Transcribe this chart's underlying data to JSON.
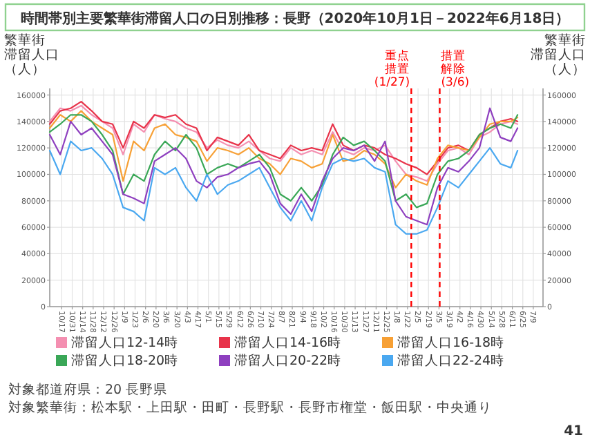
{
  "chart_data": {
    "type": "line",
    "title": "時間帯別主要繁華街滞留人口の日別推移：長野（2020年10月1日－2022年6月18日）",
    "ylabel": "繁華街滞留人口（人）",
    "y2label": "繁華街滞留人口（人）",
    "x": [
      "2020-10-01",
      "2020-10-15",
      "2020-10-29",
      "2020-11-12",
      "2020-11-26",
      "2020-12-10",
      "2020-12-24",
      "2021-01-07",
      "2021-01-21",
      "2021-02-04",
      "2021-02-18",
      "2021-03-04",
      "2021-03-18",
      "2021-04-01",
      "2021-04-15",
      "2021-04-29",
      "2021-05-13",
      "2021-05-27",
      "2021-06-10",
      "2021-06-24",
      "2021-07-08",
      "2021-07-22",
      "2021-08-05",
      "2021-08-19",
      "2021-09-02",
      "2021-09-16",
      "2021-09-30",
      "2021-10-14",
      "2021-10-28",
      "2021-11-11",
      "2021-11-25",
      "2021-12-09",
      "2021-12-23",
      "2022-01-06",
      "2022-01-20",
      "2022-02-03",
      "2022-02-17",
      "2022-03-03",
      "2022-03-17",
      "2022-03-31",
      "2022-04-14",
      "2022-04-28",
      "2022-05-12",
      "2022-05-26",
      "2022-06-09",
      "2022-06-18"
    ],
    "series": [
      {
        "name": "滞留人口12-14時",
        "color": "#f48fb1",
        "values": [
          140000,
          150000,
          148000,
          152000,
          145000,
          140000,
          135000,
          115000,
          138000,
          132000,
          145000,
          142000,
          140000,
          135000,
          132000,
          120000,
          126000,
          122000,
          120000,
          125000,
          118000,
          112000,
          110000,
          120000,
          115000,
          118000,
          115000,
          132000,
          118000,
          115000,
          120000,
          118000,
          122000,
          110000,
          100000,
          98000,
          95000,
          108000,
          118000,
          120000,
          115000,
          128000,
          132000,
          138000,
          140000,
          138000
        ]
      },
      {
        "name": "滞留人口14-16時",
        "color": "#e8334a",
        "values": [
          138000,
          148000,
          150000,
          155000,
          148000,
          140000,
          138000,
          120000,
          140000,
          135000,
          145000,
          143000,
          145000,
          138000,
          135000,
          118000,
          128000,
          125000,
          122000,
          130000,
          118000,
          115000,
          112000,
          122000,
          118000,
          120000,
          118000,
          138000,
          122000,
          118000,
          122000,
          120000,
          115000,
          112000,
          108000,
          105000,
          100000,
          110000,
          120000,
          122000,
          118000,
          130000,
          135000,
          140000,
          142000,
          140000
        ]
      },
      {
        "name": "滞留人口16-18時",
        "color": "#f7a035",
        "values": [
          135000,
          145000,
          140000,
          148000,
          140000,
          135000,
          130000,
          95000,
          125000,
          118000,
          135000,
          138000,
          130000,
          128000,
          125000,
          110000,
          120000,
          118000,
          115000,
          120000,
          112000,
          108000,
          100000,
          112000,
          110000,
          105000,
          108000,
          130000,
          110000,
          112000,
          118000,
          115000,
          108000,
          90000,
          100000,
          95000,
          92000,
          112000,
          122000,
          120000,
          118000,
          128000,
          138000,
          140000,
          140000,
          143000
        ]
      },
      {
        "name": "滞留人口18-20時",
        "color": "#3aa757",
        "values": [
          132000,
          138000,
          145000,
          145000,
          140000,
          130000,
          118000,
          85000,
          100000,
          95000,
          115000,
          125000,
          118000,
          130000,
          120000,
          100000,
          105000,
          108000,
          105000,
          110000,
          115000,
          105000,
          85000,
          80000,
          90000,
          80000,
          92000,
          115000,
          128000,
          122000,
          125000,
          118000,
          110000,
          80000,
          85000,
          75000,
          78000,
          100000,
          110000,
          112000,
          118000,
          130000,
          135000,
          138000,
          135000,
          145000
        ]
      },
      {
        "name": "滞留人口20-22時",
        "color": "#8e3fbf",
        "values": [
          130000,
          115000,
          140000,
          130000,
          135000,
          125000,
          115000,
          85000,
          82000,
          78000,
          110000,
          115000,
          120000,
          112000,
          95000,
          90000,
          98000,
          100000,
          105000,
          108000,
          110000,
          100000,
          78000,
          70000,
          85000,
          72000,
          95000,
          112000,
          120000,
          118000,
          122000,
          110000,
          125000,
          80000,
          68000,
          65000,
          62000,
          90000,
          105000,
          102000,
          110000,
          120000,
          150000,
          128000,
          125000,
          135000
        ]
      },
      {
        "name": "滞留人口22-24時",
        "color": "#4aa8f0",
        "values": [
          118000,
          100000,
          125000,
          118000,
          120000,
          112000,
          100000,
          75000,
          72000,
          65000,
          105000,
          100000,
          105000,
          90000,
          80000,
          100000,
          85000,
          92000,
          95000,
          100000,
          105000,
          90000,
          75000,
          65000,
          80000,
          65000,
          90000,
          108000,
          112000,
          110000,
          112000,
          105000,
          102000,
          62000,
          55000,
          55000,
          58000,
          75000,
          95000,
          90000,
          100000,
          110000,
          120000,
          108000,
          105000,
          118000
        ]
      }
    ],
    "xlim": [
      "2020-10-01",
      "2022-07-22"
    ],
    "xticks": [
      {
        "value": "2020-10-17",
        "label": "10/17"
      },
      {
        "value": "2020-10-31",
        "label": "10/31"
      },
      {
        "value": "2020-11-14",
        "label": "11/14"
      },
      {
        "value": "2020-11-28",
        "label": "11/28"
      },
      {
        "value": "2020-12-12",
        "label": "12/12"
      },
      {
        "value": "2020-12-26",
        "label": "12/26"
      },
      {
        "value": "2021-01-09",
        "label": "1/9"
      },
      {
        "value": "2021-01-23",
        "label": "1/23"
      },
      {
        "value": "2021-02-06",
        "label": "2/6"
      },
      {
        "value": "2021-02-20",
        "label": "2/20"
      },
      {
        "value": "2021-03-06",
        "label": "3/6"
      },
      {
        "value": "2021-03-20",
        "label": "3/20"
      },
      {
        "value": "2021-04-03",
        "label": "4/3"
      },
      {
        "value": "2021-04-17",
        "label": "4/17"
      },
      {
        "value": "2021-05-01",
        "label": "5/1"
      },
      {
        "value": "2021-05-15",
        "label": "5/15"
      },
      {
        "value": "2021-05-29",
        "label": "5/29"
      },
      {
        "value": "2021-06-12",
        "label": "6/12"
      },
      {
        "value": "2021-06-26",
        "label": "6/26"
      },
      {
        "value": "2021-07-10",
        "label": "7/10"
      },
      {
        "value": "2021-07-24",
        "label": "7/24"
      },
      {
        "value": "2021-08-07",
        "label": "8/7"
      },
      {
        "value": "2021-08-21",
        "label": "8/21"
      },
      {
        "value": "2021-09-04",
        "label": "9/4"
      },
      {
        "value": "2021-09-18",
        "label": "9/18"
      },
      {
        "value": "2021-10-02",
        "label": "10/2"
      },
      {
        "value": "2021-10-16",
        "label": "10/16"
      },
      {
        "value": "2021-10-30",
        "label": "10/30"
      },
      {
        "value": "2021-11-13",
        "label": "11/13"
      },
      {
        "value": "2021-11-27",
        "label": "11/27"
      },
      {
        "value": "2021-12-11",
        "label": "12/11"
      },
      {
        "value": "2021-12-25",
        "label": "12/25"
      },
      {
        "value": "2022-01-08",
        "label": "1/8"
      },
      {
        "value": "2022-01-22",
        "label": "1/22"
      },
      {
        "value": "2022-02-05",
        "label": "2/5"
      },
      {
        "value": "2022-02-19",
        "label": "2/19"
      },
      {
        "value": "2022-03-05",
        "label": "3/5"
      },
      {
        "value": "2022-03-19",
        "label": "3/19"
      },
      {
        "value": "2022-04-02",
        "label": "4/2"
      },
      {
        "value": "2022-04-16",
        "label": "4/16"
      },
      {
        "value": "2022-04-30",
        "label": "4/30"
      },
      {
        "value": "2022-05-14",
        "label": "5/14"
      },
      {
        "value": "2022-05-28",
        "label": "5/28"
      },
      {
        "value": "2022-06-11",
        "label": "6/11"
      },
      {
        "value": "2022-06-25",
        "label": "6/25"
      },
      {
        "value": "2022-07-09",
        "label": "7/9"
      }
    ],
    "ylim": [
      0,
      165000
    ],
    "yticks": [
      0,
      20000,
      40000,
      60000,
      80000,
      100000,
      120000,
      140000,
      160000
    ],
    "y2lim": [
      0,
      165000
    ],
    "y2ticks": [
      0,
      20000,
      40000,
      60000,
      80000,
      100000,
      120000,
      140000,
      160000
    ],
    "ref_lines": [
      {
        "axis": "x",
        "value": "2022-01-27",
        "label": "重点措置(1/27)",
        "color": "#ff0000",
        "line_style": "dashed"
      },
      {
        "axis": "x",
        "value": "2022-03-06",
        "label": "措置解除(3/6)",
        "color": "#ff0000",
        "line_style": "dashed"
      }
    ],
    "grid": true,
    "legend": "bottom",
    "marker": "none",
    "line_style": "solid",
    "annotations": [
      "対象都道府県：20 長野県",
      "対象繁華街：松本駅・上田駅・田町・長野駅・長野市権堂・飯田駅・中央通り",
      "41"
    ]
  }
}
